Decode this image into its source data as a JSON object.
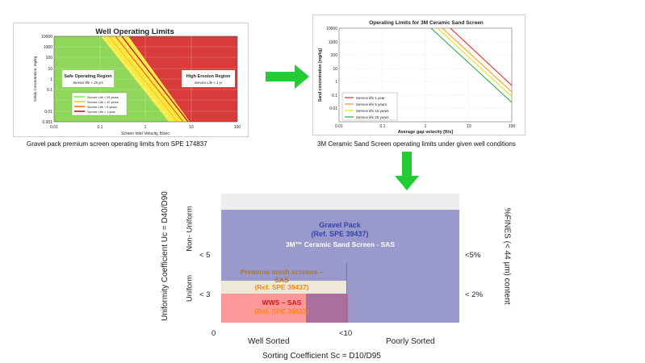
{
  "top_left": {
    "title": "Well Operating Limits",
    "ylabel": "Solids Concentration, mg/kg",
    "xlabel": "Screen Inlet Velocity, ft/sec",
    "y_ticks": [
      "10000",
      "1000",
      "100",
      "10",
      "1",
      "0.1",
      "0.01",
      "0.001"
    ],
    "x_ticks": [
      "0.01",
      "0.1",
      "1",
      "10",
      "100"
    ],
    "safe_region": "Safe Operating Region",
    "safe_sub": "Service life > 25 yrs",
    "erosion_region": "High Erosion Region",
    "erosion_sub": "Service Life < 1 yr",
    "legend": [
      {
        "label": "Service Life = 25 years",
        "color": "#66ff33"
      },
      {
        "label": "Service Life = 10 years",
        "color": "#ffcc00"
      },
      {
        "label": "Service Life = 5 years",
        "color": "#ff6600"
      },
      {
        "label": "Service Life = 1 year",
        "color": "#cc0000"
      }
    ],
    "caption": "Gravel pack premium screen operating limits from SPE 174837"
  },
  "top_right": {
    "title": "Operating Limits for 3M Ceramic Sand Screen",
    "ylabel": "Sand concentration [mg/kg]",
    "xlabel": "Average gap velocity [ft/s]",
    "y_ticks": [
      "10000",
      "1000",
      "100",
      "10",
      "1",
      "0.1",
      "0.01"
    ],
    "x_ticks": [
      "0.01",
      "0.1",
      "1",
      "10",
      "100"
    ],
    "legend": [
      {
        "label": "Service life 1 year",
        "color": "#e02020"
      },
      {
        "label": "Service life 5 years",
        "color": "#ff9900"
      },
      {
        "label": "Service life 10 years",
        "color": "#e8e000"
      },
      {
        "label": "Service life 25 years",
        "color": "#22aa44"
      }
    ],
    "caption": "3M Ceramic Sand Screen operating limits under given well conditions"
  },
  "arrows": {
    "color": "#22cc33"
  },
  "bottom": {
    "ylabel": "Uniformity Coefficient Uc = D40/D90",
    "xlabel": "Sorting Coefficient Sc = D10/D95",
    "right_label": "%FINES (< 44 µm) content",
    "non_uniform": "Non- Uniform",
    "uniform": "Uniform",
    "lt5_left": "< 5",
    "lt3_left": "< 3",
    "lt5_right": "<5%",
    "lt2_right": "< 2%",
    "x_zero": "0",
    "x_lt10": "<10",
    "well_sorted": "Well Sorted",
    "poorly_sorted": "Poorly Sorted",
    "gravel_pack": "Gravel Pack",
    "gravel_ref": "(Ref. SPE 39437)",
    "ceramic": "3M™ Ceramic Sand Screen - SAS",
    "premium_mesh_1": "Premium mesh screens –",
    "premium_mesh_2": "SAS",
    "premium_ref": "(Ref. SPE 39437)",
    "wws": "WWS – SAS",
    "wws_ref": "(Ref. SPE 39437)",
    "colors": {
      "gravel": "#9999cc",
      "gravel_text": "#3344aa",
      "ceramic_text": "#ffffff",
      "premium_fill": "#eee8d8",
      "premium_text": "#aa7733",
      "wws_fill": "#ff9999",
      "wws_text": "#dd1111",
      "ref_text": "#ff8800",
      "overlap": "#aa6f9c",
      "top_band": "#eeeeee"
    }
  }
}
